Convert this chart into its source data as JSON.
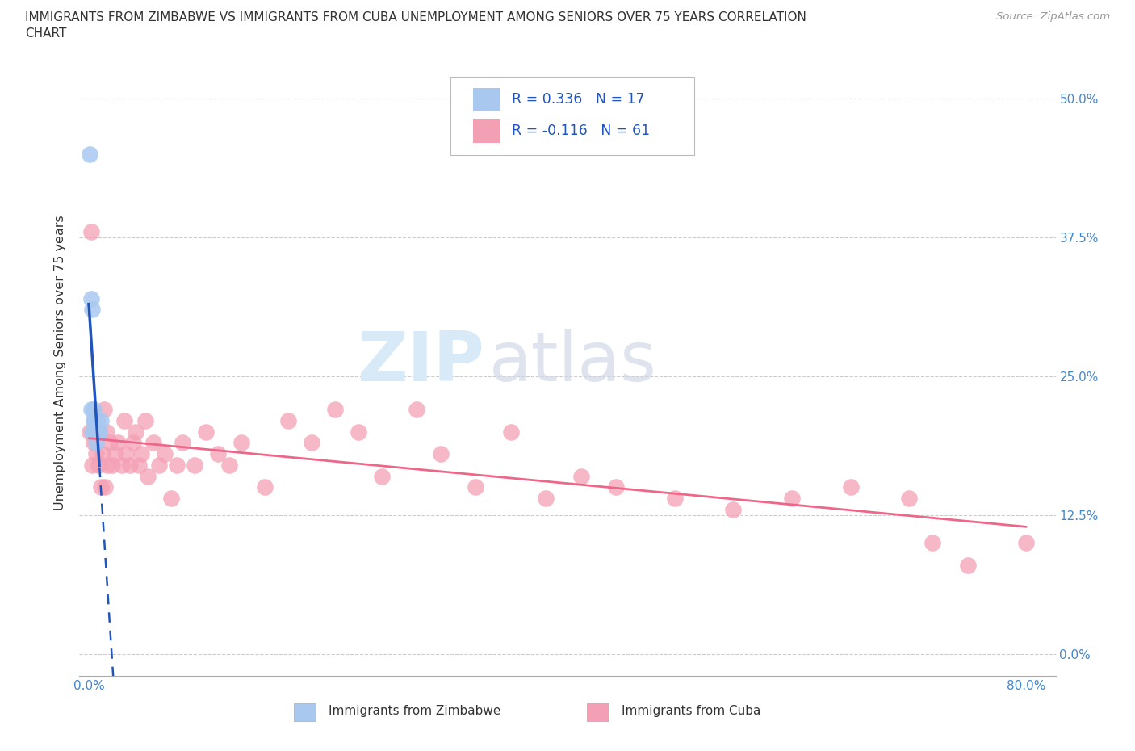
{
  "title_line1": "IMMIGRANTS FROM ZIMBABWE VS IMMIGRANTS FROM CUBA UNEMPLOYMENT AMONG SENIORS OVER 75 YEARS CORRELATION",
  "title_line2": "CHART",
  "source": "Source: ZipAtlas.com",
  "ylabel": "Unemployment Among Seniors over 75 years",
  "watermark_ZIP": "ZIP",
  "watermark_atlas": "atlas",
  "zimbabwe_color": "#a8c8f0",
  "zimbabwe_edge": "#88aadd",
  "cuba_color": "#f4a0b4",
  "cuba_edge": "#dd8899",
  "zimbabwe_line_color": "#2255bb",
  "cuba_line_color": "#ee6688",
  "R_zimbabwe": 0.336,
  "N_zimbabwe": 17,
  "R_cuba": -0.116,
  "N_cuba": 61,
  "xlim": [
    -0.008,
    0.825
  ],
  "ylim": [
    -0.02,
    0.545
  ],
  "xticks": [
    0.0,
    0.1,
    0.2,
    0.3,
    0.4,
    0.5,
    0.6,
    0.7,
    0.8
  ],
  "yticks": [
    0.0,
    0.125,
    0.25,
    0.375,
    0.5
  ],
  "ytick_labels": [
    "0.0%",
    "12.5%",
    "25.0%",
    "37.5%",
    "50.0%"
  ],
  "zimbabwe_x": [
    0.001,
    0.002,
    0.002,
    0.003,
    0.003,
    0.004,
    0.004,
    0.005,
    0.005,
    0.005,
    0.006,
    0.006,
    0.007,
    0.007,
    0.008,
    0.009,
    0.01
  ],
  "zimbabwe_y": [
    0.45,
    0.32,
    0.22,
    0.31,
    0.2,
    0.22,
    0.21,
    0.21,
    0.2,
    0.2,
    0.2,
    0.19,
    0.21,
    0.2,
    0.2,
    0.2,
    0.21
  ],
  "cuba_x": [
    0.001,
    0.002,
    0.003,
    0.004,
    0.005,
    0.006,
    0.007,
    0.008,
    0.009,
    0.01,
    0.012,
    0.013,
    0.014,
    0.015,
    0.016,
    0.018,
    0.02,
    0.022,
    0.025,
    0.028,
    0.03,
    0.032,
    0.035,
    0.038,
    0.04,
    0.043,
    0.045,
    0.048,
    0.05,
    0.055,
    0.06,
    0.065,
    0.07,
    0.075,
    0.08,
    0.09,
    0.1,
    0.11,
    0.12,
    0.13,
    0.15,
    0.17,
    0.19,
    0.21,
    0.23,
    0.25,
    0.28,
    0.3,
    0.33,
    0.36,
    0.39,
    0.42,
    0.45,
    0.5,
    0.55,
    0.6,
    0.65,
    0.7,
    0.72,
    0.75,
    0.8
  ],
  "cuba_y": [
    0.2,
    0.38,
    0.17,
    0.19,
    0.2,
    0.18,
    0.2,
    0.17,
    0.2,
    0.15,
    0.18,
    0.22,
    0.15,
    0.2,
    0.17,
    0.19,
    0.17,
    0.18,
    0.19,
    0.17,
    0.21,
    0.18,
    0.17,
    0.19,
    0.2,
    0.17,
    0.18,
    0.21,
    0.16,
    0.19,
    0.17,
    0.18,
    0.14,
    0.17,
    0.19,
    0.17,
    0.2,
    0.18,
    0.17,
    0.19,
    0.15,
    0.21,
    0.19,
    0.22,
    0.2,
    0.16,
    0.22,
    0.18,
    0.15,
    0.2,
    0.14,
    0.16,
    0.15,
    0.14,
    0.13,
    0.14,
    0.15,
    0.14,
    0.1,
    0.08,
    0.1
  ],
  "legend_label1": "R = 0.336   N = 17",
  "legend_label2": "R = -0.116   N = 61",
  "bottom_label1": "Immigrants from Zimbabwe",
  "bottom_label2": "Immigrants from Cuba"
}
